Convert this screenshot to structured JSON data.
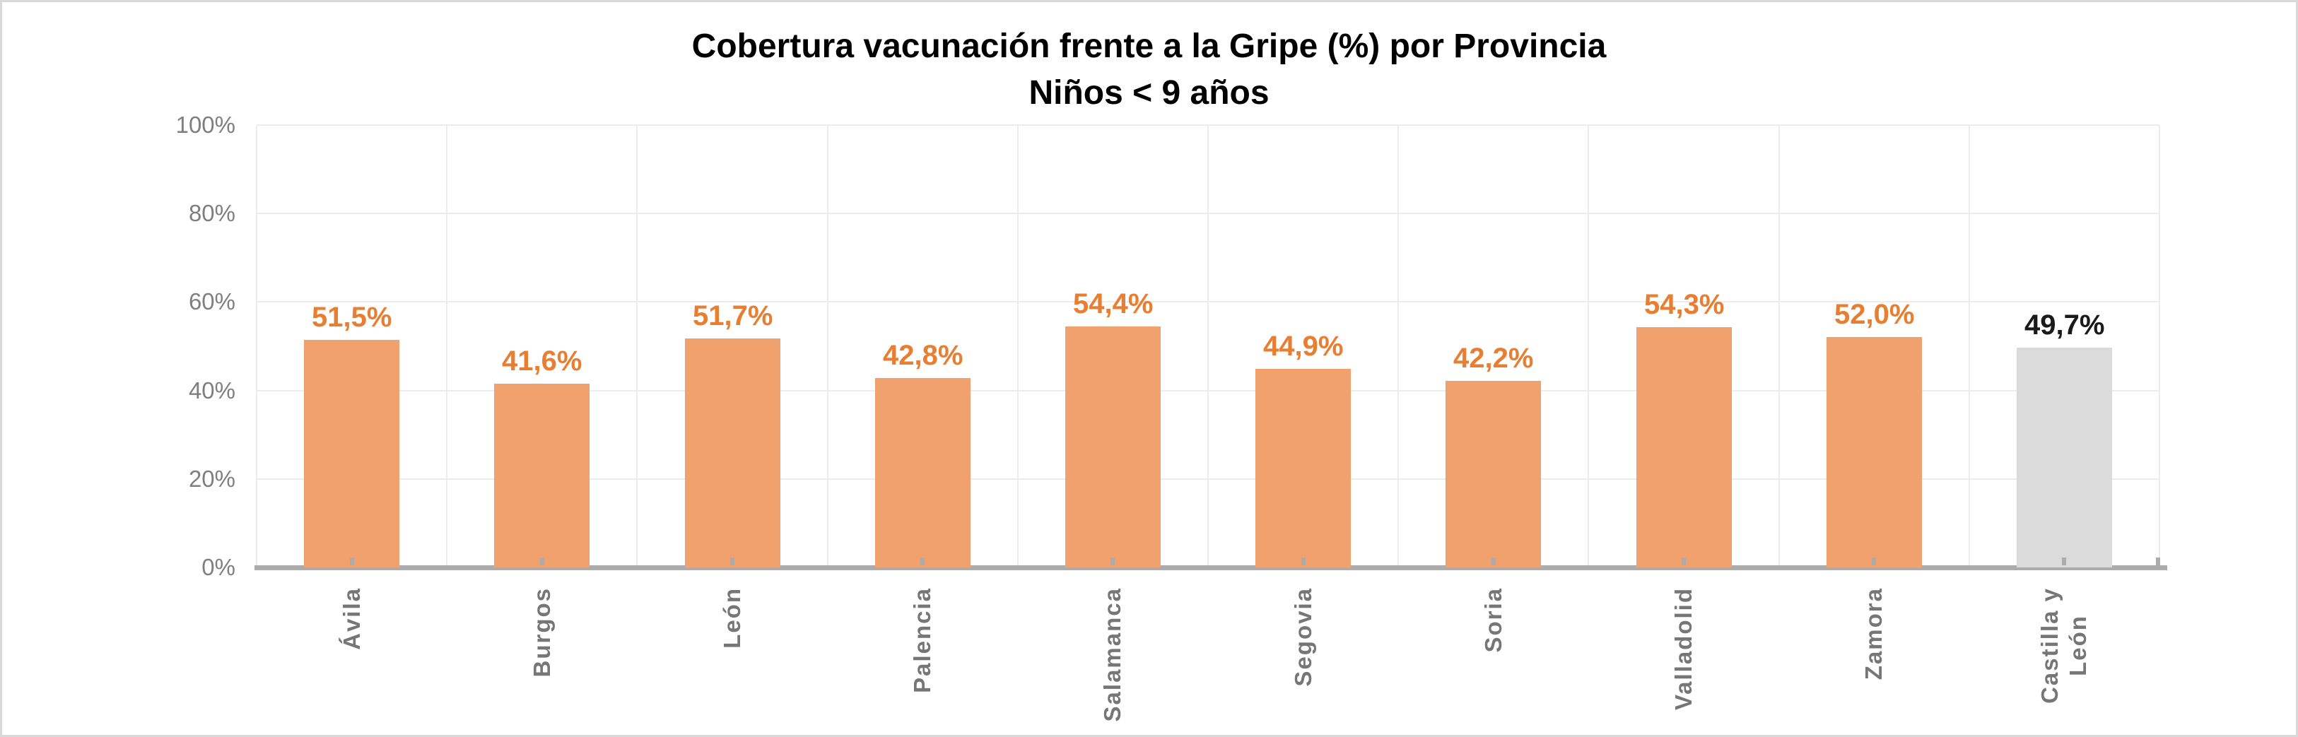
{
  "chart_data": {
    "type": "bar",
    "title": "Cobertura vacunación frente a la Gripe (%) por Provincia",
    "subtitle": "Niños < 9 años",
    "categories": [
      "Ávila",
      "Burgos",
      "León",
      "Palencia",
      "Salamanca",
      "Segovia",
      "Soria",
      "Valladolid",
      "Zamora",
      "Castilla y\nLeón"
    ],
    "values": [
      51.5,
      41.6,
      51.7,
      42.8,
      54.4,
      44.9,
      42.2,
      54.3,
      52.0,
      49.7
    ],
    "value_labels": [
      "51,5%",
      "41,6%",
      "51,7%",
      "42,8%",
      "54,4%",
      "44,9%",
      "42,2%",
      "54,3%",
      "52,0%",
      "49,7%"
    ],
    "highlight_category": "Castilla y León",
    "xlabel": "",
    "ylabel": "",
    "ylim": [
      0,
      100
    ],
    "ytick_values": [
      0,
      20,
      40,
      60,
      80,
      100
    ],
    "ytick_labels": [
      "0%",
      "20%",
      "40%",
      "60%",
      "80%",
      "100%"
    ],
    "grid": true,
    "legend": "none",
    "colors": {
      "bar": "#F0A16E",
      "highlight_bar": "#DBDBDB",
      "value_label": "#E87E31",
      "highlight_value_label": "#1A1A1A",
      "axis_line": "#ACACAC",
      "gridline": "#ECECEC",
      "ytick_text": "#7F7F7F",
      "category_text": "#767676",
      "title_text": "#000000",
      "border": "#D9D9D9"
    }
  }
}
